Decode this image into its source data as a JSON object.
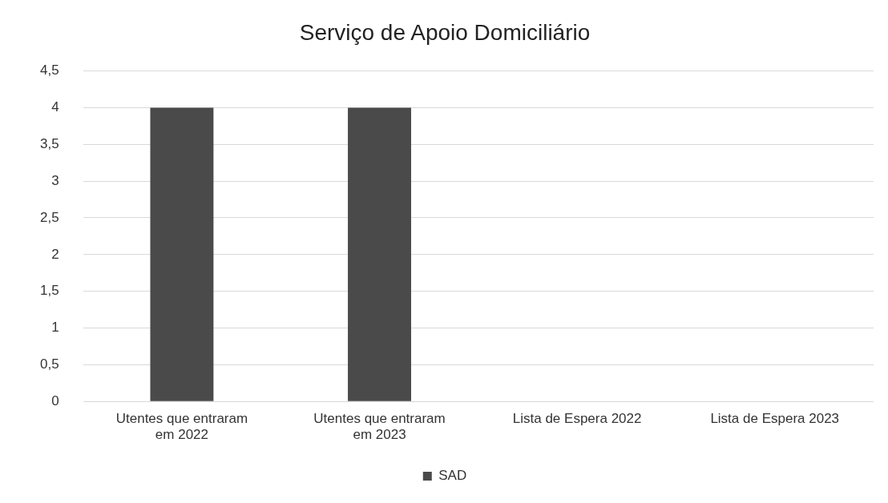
{
  "chart_data": {
    "type": "bar",
    "title": "Serviço de Apoio Domiciliário",
    "categories": [
      "Utentes que entraram em 2022",
      "Utentes que entraram em 2023",
      "Lista de Espera 2022",
      "Lista de Espera 2023"
    ],
    "series": [
      {
        "name": "SAD",
        "color": "#4a4a4a",
        "values": [
          4,
          4,
          0,
          0
        ]
      }
    ],
    "ylim": [
      0,
      4.5
    ],
    "yticks": [
      0,
      {
        "value": 0.5,
        "label": "0,5"
      },
      1,
      {
        "value": 1.5,
        "label": "1,5"
      },
      2,
      {
        "value": 2.5,
        "label": "2,5"
      },
      3,
      {
        "value": 3.5,
        "label": "3,5"
      },
      4,
      {
        "value": 4.5,
        "label": "4,5"
      }
    ],
    "grid": "y",
    "legend": "bottom"
  }
}
